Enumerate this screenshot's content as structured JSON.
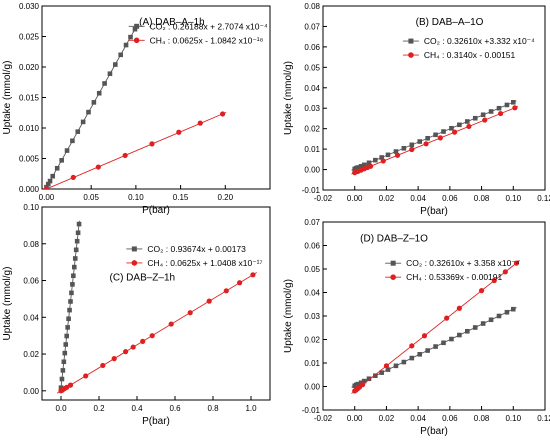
{
  "chart_data": [
    {
      "type": "scatter",
      "panel_label": "(A) DAB–A–1h",
      "xlabel": "P(bar)",
      "ylabel": "Uptake (mmol/g)",
      "xlim": [
        -0.005,
        0.25
      ],
      "ylim": [
        0,
        0.03
      ],
      "xticks": [
        0.0,
        0.05,
        0.1,
        0.15,
        0.2
      ],
      "xtick_labels": [
        "0.00",
        "0.05",
        "0.10",
        "0.15",
        "0.20"
      ],
      "yticks": [
        0,
        0.005,
        0.01,
        0.015,
        0.02,
        0.025,
        0.03
      ],
      "ytick_labels": [
        "0.000",
        "0.005",
        "0.010",
        "0.015",
        "0.020",
        "0.025",
        "0.030"
      ],
      "legend_position": "top-right",
      "series": [
        {
          "name": "CO₂ : 0.26188x + 2.7074 x10⁻⁴",
          "marker": "square",
          "color": "#555555",
          "slope": 0.26188,
          "intercept": 0.00027074,
          "x": [
            0.0,
            0.002,
            0.004,
            0.007,
            0.012,
            0.017,
            0.023,
            0.029,
            0.035,
            0.041,
            0.047,
            0.053,
            0.059,
            0.065,
            0.071,
            0.077,
            0.083,
            0.089,
            0.094,
            0.099
          ],
          "y": [
            0.0003,
            0.0008,
            0.0013,
            0.0021,
            0.0034,
            0.0047,
            0.0063,
            0.0079,
            0.0094,
            0.011,
            0.0126,
            0.0142,
            0.0157,
            0.0173,
            0.0189,
            0.0204,
            0.022,
            0.0236,
            0.0249,
            0.0262
          ]
        },
        {
          "name": "CH₄ : 0.0625x - 1.0842 x10⁻¹⁸",
          "marker": "circle",
          "color": "#e02020",
          "slope": 0.0625,
          "intercept": 0.0,
          "x": [
            0.0,
            0.03,
            0.058,
            0.088,
            0.118,
            0.148,
            0.172,
            0.197
          ],
          "y": [
            0.0,
            0.0019,
            0.0036,
            0.0055,
            0.0074,
            0.0093,
            0.0108,
            0.0123
          ]
        }
      ]
    },
    {
      "type": "scatter",
      "panel_label": "(B) DAB–A–1O",
      "xlabel": "P(bar)",
      "ylabel": "Uptake (mmol/g)",
      "xlim": [
        -0.02,
        0.12
      ],
      "ylim": [
        -0.01,
        0.08
      ],
      "xticks": [
        -0.02,
        0.0,
        0.02,
        0.04,
        0.06,
        0.08,
        0.1,
        0.12
      ],
      "xtick_labels": [
        "-0.02",
        "0.00",
        "0.02",
        "0.04",
        "0.06",
        "0.08",
        "0.10",
        "0.12"
      ],
      "yticks": [
        -0.01,
        0.0,
        0.01,
        0.02,
        0.03,
        0.04,
        0.05,
        0.06,
        0.07,
        0.08
      ],
      "ytick_labels": [
        "-0.01",
        "0.00",
        "0.01",
        "0.02",
        "0.03",
        "0.04",
        "0.05",
        "0.06",
        "0.07",
        "0.08"
      ],
      "legend_position": "top-right",
      "series": [
        {
          "name": "CO₂ : 0.32610x +3.332 x10⁻⁴",
          "marker": "square",
          "color": "#555555",
          "slope": 0.3261,
          "intercept": 0.0003332,
          "x": [
            0.0,
            0.001,
            0.002,
            0.004,
            0.006,
            0.009,
            0.013,
            0.017,
            0.021,
            0.026,
            0.031,
            0.036,
            0.041,
            0.046,
            0.051,
            0.056,
            0.061,
            0.066,
            0.071,
            0.076,
            0.081,
            0.086,
            0.091,
            0.096,
            0.1
          ],
          "y": [
            0.0003,
            0.0007,
            0.001,
            0.0016,
            0.0023,
            0.0033,
            0.0046,
            0.0059,
            0.0072,
            0.0088,
            0.0104,
            0.0121,
            0.0137,
            0.0153,
            0.017,
            0.0186,
            0.0202,
            0.0219,
            0.0235,
            0.0251,
            0.0268,
            0.0284,
            0.03,
            0.0316,
            0.0329
          ]
        },
        {
          "name": "CH₄ : 0.3140x - 0.00151",
          "marker": "circle",
          "color": "#e02020",
          "slope": 0.314,
          "intercept": -0.00151,
          "x": [
            0.0,
            0.002,
            0.004,
            0.006,
            0.008,
            0.01,
            0.018,
            0.027,
            0.036,
            0.045,
            0.054,
            0.063,
            0.072,
            0.082,
            0.092,
            0.101
          ],
          "y": [
            -0.0015,
            -0.0009,
            -0.0003,
            0.0004,
            0.001,
            0.0016,
            0.0042,
            0.007,
            0.0098,
            0.0126,
            0.0155,
            0.0183,
            0.0211,
            0.0242,
            0.0274,
            0.0302
          ]
        }
      ]
    },
    {
      "type": "scatter",
      "panel_label": "(C) DAB–Z–1h",
      "xlabel": "P(bar)",
      "ylabel": "Uptake (mmol/g)",
      "xlim": [
        -0.1,
        1.1
      ],
      "ylim": [
        -0.005,
        0.1
      ],
      "xticks": [
        0.0,
        0.2,
        0.4,
        0.6,
        0.8,
        1.0
      ],
      "xtick_labels": [
        "0.0",
        "0.2",
        "0.4",
        "0.6",
        "0.8",
        "1.0"
      ],
      "yticks": [
        0.0,
        0.02,
        0.04,
        0.06,
        0.08,
        0.1
      ],
      "ytick_labels": [
        "0.00",
        "0.02",
        "0.04",
        "0.06",
        "0.08",
        "0.10"
      ],
      "legend_position": "top-right",
      "series": [
        {
          "name": "CO₂ : 0.93674x + 0.00173",
          "marker": "square",
          "color": "#555555",
          "slope": 0.93674,
          "intercept": 0.00173,
          "x": [
            0.0,
            0.005,
            0.01,
            0.015,
            0.02,
            0.025,
            0.03,
            0.035,
            0.04,
            0.045,
            0.05,
            0.055,
            0.06,
            0.065,
            0.07,
            0.075,
            0.08,
            0.085,
            0.09,
            0.095
          ],
          "y": [
            0.0017,
            0.0064,
            0.0111,
            0.0158,
            0.0205,
            0.0252,
            0.0298,
            0.0345,
            0.0392,
            0.0439,
            0.0486,
            0.0533,
            0.0579,
            0.0626,
            0.0673,
            0.072,
            0.0767,
            0.0814,
            0.086,
            0.0907
          ]
        },
        {
          "name": "CH₄ : 0.0625x + 1.0408 x10⁻¹⁷",
          "marker": "circle",
          "color": "#e02020",
          "slope": 0.0625,
          "intercept": 0.0,
          "x": [
            0.0,
            0.005,
            0.01,
            0.02,
            0.03,
            0.05,
            0.13,
            0.22,
            0.28,
            0.34,
            0.38,
            0.43,
            0.48,
            0.58,
            0.68,
            0.78,
            0.87,
            0.94,
            1.01
          ],
          "y": [
            0.0,
            0.0003,
            0.0006,
            0.0013,
            0.0019,
            0.0031,
            0.0081,
            0.0138,
            0.0175,
            0.0213,
            0.0238,
            0.0269,
            0.03,
            0.0363,
            0.0425,
            0.0488,
            0.0544,
            0.0588,
            0.0631
          ]
        }
      ]
    },
    {
      "type": "scatter",
      "panel_label": "(D) DAB–Z–1O",
      "xlabel": "P(bar)",
      "ylabel": "Uptake (mmol/g)",
      "xlim": [
        -0.02,
        0.12
      ],
      "ylim": [
        -0.01,
        0.07
      ],
      "xticks": [
        -0.02,
        0.0,
        0.02,
        0.04,
        0.06,
        0.08,
        0.1,
        0.12
      ],
      "xtick_labels": [
        "-0.02",
        "0.00",
        "0.02",
        "0.04",
        "0.06",
        "0.08",
        "0.10",
        "0.12"
      ],
      "yticks": [
        -0.01,
        0.0,
        0.01,
        0.02,
        0.03,
        0.04,
        0.05,
        0.06,
        0.07
      ],
      "ytick_labels": [
        "-0.01",
        "0.00",
        "0.01",
        "0.02",
        "0.03",
        "0.04",
        "0.05",
        "0.06",
        "0.07"
      ],
      "legend_position": "top-left",
      "series": [
        {
          "name": "CO₂ : 0.32610x + 3.358 x10⁻⁴",
          "marker": "square",
          "color": "#555555",
          "slope": 0.3261,
          "intercept": 0.0003358,
          "x": [
            0.0,
            0.001,
            0.002,
            0.004,
            0.006,
            0.009,
            0.013,
            0.017,
            0.021,
            0.026,
            0.031,
            0.036,
            0.041,
            0.046,
            0.051,
            0.056,
            0.061,
            0.066,
            0.071,
            0.076,
            0.081,
            0.086,
            0.091,
            0.096,
            0.1
          ],
          "y": [
            0.0003,
            0.0007,
            0.001,
            0.0016,
            0.0023,
            0.0033,
            0.0046,
            0.0059,
            0.0072,
            0.0088,
            0.0104,
            0.0121,
            0.0137,
            0.0153,
            0.017,
            0.0186,
            0.0202,
            0.0219,
            0.0235,
            0.0251,
            0.0268,
            0.0284,
            0.03,
            0.0316,
            0.0329
          ]
        },
        {
          "name": "CH₄ : 0.53369x - 0.00191",
          "marker": "circle",
          "color": "#e02020",
          "slope": 0.53369,
          "intercept": -0.00191,
          "x": [
            0.0,
            0.001,
            0.002,
            0.003,
            0.005,
            0.02,
            0.036,
            0.044,
            0.058,
            0.066,
            0.08,
            0.088,
            0.095,
            0.102
          ],
          "y": [
            -0.0019,
            -0.0014,
            -0.0008,
            -0.0003,
            0.0008,
            0.0088,
            0.0173,
            0.0216,
            0.0291,
            0.0333,
            0.0408,
            0.0451,
            0.0488,
            0.0525
          ]
        }
      ]
    }
  ]
}
